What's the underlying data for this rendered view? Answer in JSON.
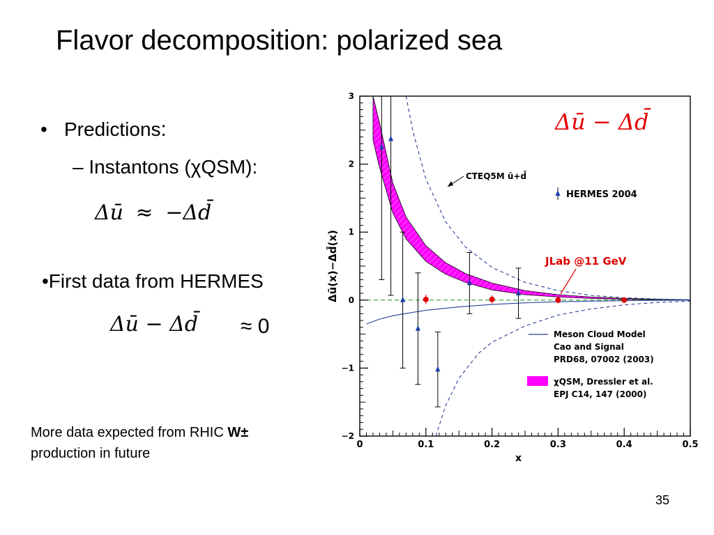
{
  "slide": {
    "title": "Flavor decomposition: polarized sea",
    "bullet_predictions": "Predictions",
    "bullet_predictions_colon": ":",
    "sub_instantons": "Instantons (χQSM):",
    "formula1_lhs": "Δū",
    "formula1_op": "≈",
    "formula1_rhs": "−Δd̄",
    "first_data": "•First data from HERMES",
    "formula2": "Δū − Δd̄",
    "approx_zero": "≈ 0",
    "note_line1": "More data  expected from RHIC ",
    "note_bold": "W±",
    "note_line2": "production in future",
    "page_number": "35"
  },
  "colors": {
    "band_fill": "#ff00ff",
    "hermes_points": "#1a3fa8",
    "jlab_points": "#e00000",
    "cteq_curve": "#2a3f9a",
    "zero_line": "#2ca02c",
    "axis": "#000000"
  },
  "chart_data": {
    "type": "scatter",
    "title": "Δū − Δd̄",
    "xlabel": "x",
    "ylabel": "Δū(x)−Δd̄(x)",
    "xlim": [
      0,
      0.5
    ],
    "ylim": [
      -2,
      3
    ],
    "x_ticks": [
      0,
      0.1,
      0.2,
      0.3,
      0.4,
      0.5
    ],
    "x_tick_labels": [
      "0",
      "0.1",
      "0.2",
      "0.3",
      "0.4",
      "0.5"
    ],
    "y_ticks": [
      -2,
      -1,
      0,
      1,
      2,
      3
    ],
    "y_tick_labels": [
      "−2",
      "−1",
      "0",
      "1",
      "2",
      "3"
    ],
    "hermes": {
      "name": "HERMES 2004",
      "points": [
        {
          "x": 0.033,
          "y": 2.25,
          "err": 1.95
        },
        {
          "x": 0.047,
          "y": 2.37,
          "err": 2.3
        },
        {
          "x": 0.065,
          "y": 0.0,
          "err": 1.0
        },
        {
          "x": 0.088,
          "y": -0.42,
          "err": 0.82
        },
        {
          "x": 0.118,
          "y": -1.02,
          "err": 0.55
        },
        {
          "x": 0.166,
          "y": 0.25,
          "err": 0.45
        },
        {
          "x": 0.24,
          "y": 0.1,
          "err": 0.37
        }
      ]
    },
    "jlab": {
      "name": "JLab @11 GeV",
      "points": [
        {
          "x": 0.1,
          "y": 0.01,
          "err": 0.07
        },
        {
          "x": 0.2,
          "y": 0.01,
          "err": 0.06
        },
        {
          "x": 0.3,
          "y": 0.0,
          "err": 0.05
        },
        {
          "x": 0.4,
          "y": 0.0,
          "err": 0.04
        }
      ]
    },
    "chiqsm_band": {
      "name": "χQSM, Dressler et al. EPJ C14, 147 (2000)",
      "x": [
        0.02,
        0.03,
        0.05,
        0.07,
        0.1,
        0.13,
        0.16,
        0.2,
        0.25,
        0.3,
        0.35,
        0.4,
        0.45,
        0.5
      ],
      "upper": [
        3.0,
        2.6,
        1.72,
        1.22,
        0.8,
        0.55,
        0.39,
        0.25,
        0.14,
        0.08,
        0.045,
        0.025,
        0.012,
        0.005
      ],
      "lower": [
        2.35,
        1.95,
        1.28,
        0.9,
        0.57,
        0.38,
        0.26,
        0.15,
        0.08,
        0.045,
        0.025,
        0.012,
        0.006,
        0.002
      ]
    },
    "cteq_curve": {
      "name": "CTEQ5M ū+d̄",
      "x": [
        0.07,
        0.08,
        0.1,
        0.13,
        0.16,
        0.2,
        0.25,
        0.3,
        0.35,
        0.4,
        0.45,
        0.5
      ],
      "y": [
        3.0,
        2.5,
        1.78,
        1.15,
        0.78,
        0.48,
        0.26,
        0.14,
        0.07,
        0.035,
        0.015,
        0.005
      ]
    },
    "meson_cloud": {
      "name": "Meson Cloud Model Cao and Signal PRD68, 07002 (2003)",
      "x": [
        0.01,
        0.03,
        0.05,
        0.08,
        0.1,
        0.15,
        0.2,
        0.25,
        0.3,
        0.35,
        0.4,
        0.45,
        0.5
      ],
      "y": [
        -0.35,
        -0.28,
        -0.23,
        -0.18,
        -0.15,
        -0.1,
        -0.065,
        -0.04,
        -0.025,
        -0.015,
        -0.008,
        -0.004,
        -0.002
      ]
    },
    "lower_dashed": {
      "x": [
        0.115,
        0.12,
        0.13,
        0.15,
        0.18,
        0.2,
        0.25,
        0.3,
        0.35,
        0.4,
        0.45,
        0.5
      ],
      "y": [
        -2.0,
        -1.85,
        -1.55,
        -1.15,
        -0.78,
        -0.62,
        -0.38,
        -0.22,
        -0.13,
        -0.07,
        -0.035,
        -0.015
      ]
    },
    "legend": {
      "cteq": "CTEQ5M ū+d̄",
      "hermes": "HERMES 2004",
      "meson_line1": "Meson Cloud Model",
      "meson_line2": "Cao and Signal",
      "meson_line3": "PRD68, 07002 (2003)",
      "chiqsm_line1": "χQSM,  Dressler et al.",
      "chiqsm_line2": "EPJ C14, 147 (2000)",
      "jlab_label": "JLab @11 GeV"
    }
  }
}
